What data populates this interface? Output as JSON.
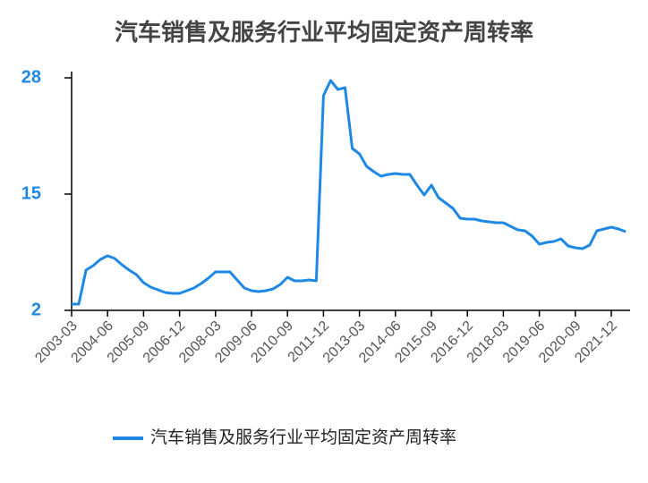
{
  "chart_data": {
    "type": "line",
    "title": "汽车销售及服务行业平均固定资产周转率",
    "categories": [
      "2003-03",
      null,
      null,
      null,
      null,
      "2004-06",
      null,
      null,
      null,
      null,
      "2005-09",
      null,
      null,
      null,
      null,
      "2006-12",
      null,
      null,
      null,
      null,
      "2008-03",
      null,
      null,
      null,
      null,
      "2009-06",
      null,
      null,
      null,
      null,
      "2010-09",
      null,
      null,
      null,
      null,
      "2011-12",
      null,
      null,
      null,
      null,
      "2013-03",
      null,
      null,
      null,
      null,
      "2014-06",
      null,
      null,
      null,
      null,
      "2015-09",
      null,
      null,
      null,
      null,
      "2016-12",
      null,
      null,
      null,
      null,
      "2018-03",
      null,
      null,
      null,
      null,
      "2019-06",
      null,
      null,
      null,
      null,
      "2020-09",
      null,
      null,
      null,
      null,
      "2021-12",
      null,
      null
    ],
    "series": [
      {
        "name": "汽车销售及服务行业平均固定资产周转率",
        "color": "#1e88e5",
        "values": [
          2.7,
          2.7,
          6.5,
          7.0,
          7.7,
          8.1,
          7.8,
          7.1,
          6.5,
          6.0,
          5.1,
          4.6,
          4.3,
          4.0,
          3.9,
          3.9,
          4.2,
          4.5,
          5.0,
          5.6,
          6.3,
          6.3,
          6.3,
          5.4,
          4.5,
          4.2,
          4.1,
          4.2,
          4.4,
          4.9,
          5.7,
          5.3,
          5.3,
          5.4,
          5.3,
          26.0,
          27.7,
          26.7,
          26.9,
          20.1,
          19.5,
          18.1,
          17.5,
          17.0,
          17.2,
          17.3,
          17.2,
          17.2,
          16.0,
          14.9,
          16.0,
          14.6,
          14.0,
          13.4,
          12.3,
          12.2,
          12.2,
          12.0,
          11.9,
          11.8,
          11.8,
          11.4,
          11.0,
          10.9,
          10.3,
          9.4,
          9.6,
          9.7,
          10.0,
          9.2,
          9.0,
          8.9,
          9.3,
          10.9,
          11.1,
          11.3,
          11.1,
          10.8
        ]
      }
    ],
    "ylim": [
      2,
      28
    ],
    "yticks": [
      2,
      15,
      28
    ],
    "grid": false,
    "legend": "bottom"
  }
}
